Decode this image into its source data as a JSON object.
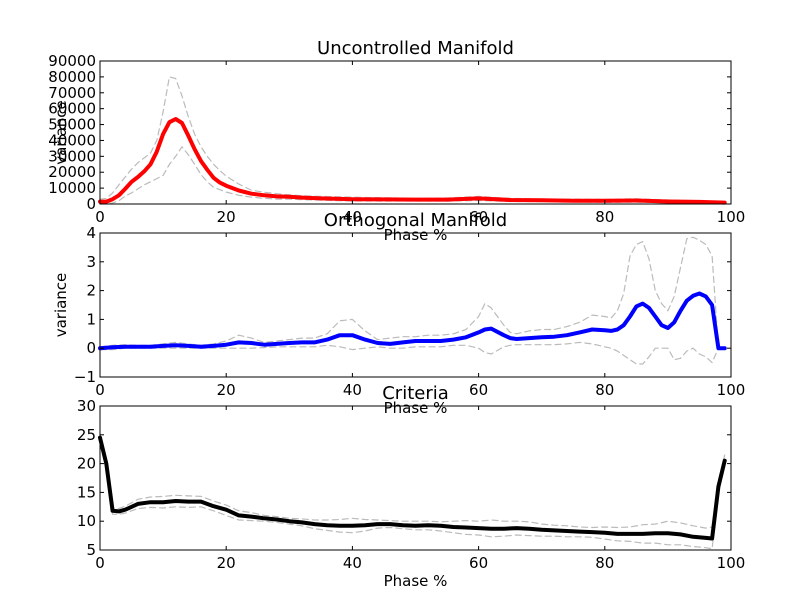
{
  "chart_data": [
    {
      "type": "line",
      "title": "Uncontrolled Manifold",
      "xlabel": "Phase %",
      "ylabel": "variance",
      "xlim": [
        0,
        100
      ],
      "ylim": [
        0,
        90000
      ],
      "xticks": [
        "0",
        "20",
        "40",
        "60",
        "80",
        "100"
      ],
      "yticks": [
        "0",
        "10000",
        "20000",
        "30000",
        "40000",
        "50000",
        "60000",
        "70000",
        "80000",
        "90000"
      ],
      "grid": false,
      "series": [
        {
          "role": "mean",
          "color": "#ff0000",
          "x": [
            0,
            1,
            2,
            3,
            4,
            5,
            6,
            7,
            8,
            9,
            10,
            11,
            12,
            13,
            14,
            15,
            16,
            17,
            18,
            19,
            20,
            22,
            24,
            26,
            28,
            30,
            32,
            35,
            38,
            40,
            45,
            50,
            55,
            60,
            65,
            70,
            75,
            80,
            85,
            90,
            95,
            99
          ],
          "y": [
            1500,
            1500,
            3000,
            5500,
            9500,
            14000,
            17000,
            20500,
            25000,
            33000,
            44000,
            51500,
            53500,
            51000,
            43000,
            34500,
            27000,
            21500,
            16500,
            13500,
            11500,
            8500,
            6500,
            5500,
            4800,
            4500,
            4000,
            3500,
            3200,
            3000,
            2900,
            2800,
            2800,
            3500,
            2500,
            2300,
            2100,
            2000,
            2200,
            1600,
            1300,
            900
          ]
        },
        {
          "role": "upper",
          "color": "#bbbbbb",
          "x": [
            0,
            1,
            2,
            3,
            4,
            5,
            6,
            7,
            8,
            9,
            10,
            11,
            12,
            13,
            14,
            15,
            16,
            17,
            18,
            19,
            20,
            22,
            24,
            26,
            28,
            30,
            32,
            35,
            38,
            40,
            45,
            50,
            55,
            60,
            65,
            70,
            75,
            80,
            85,
            90,
            95,
            99
          ],
          "y": [
            3000,
            3500,
            7000,
            12000,
            17000,
            22000,
            26000,
            29000,
            32000,
            40000,
            58000,
            80000,
            79000,
            68000,
            55000,
            44000,
            36000,
            30000,
            25000,
            21000,
            17500,
            12500,
            8700,
            7400,
            6500,
            5800,
            5200,
            4800,
            4500,
            4300,
            3900,
            3600,
            3800,
            4800,
            3500,
            3100,
            3000,
            2900,
            3300,
            2500,
            2000,
            1400
          ]
        },
        {
          "role": "lower",
          "color": "#bbbbbb",
          "x": [
            0,
            1,
            2,
            3,
            4,
            5,
            6,
            7,
            8,
            9,
            10,
            11,
            12,
            13,
            14,
            15,
            16,
            17,
            18,
            19,
            20,
            22,
            24,
            26,
            28,
            30,
            32,
            35,
            38,
            40,
            45,
            50,
            55,
            60,
            65,
            70,
            75,
            80,
            85,
            90,
            95,
            99
          ],
          "y": [
            300,
            200,
            600,
            2000,
            5000,
            7000,
            9500,
            12000,
            14000,
            16000,
            18000,
            25000,
            30000,
            36000,
            31000,
            25000,
            18500,
            14000,
            10500,
            9000,
            7500,
            5500,
            4300,
            3600,
            3100,
            3000,
            2800,
            2400,
            2100,
            1900,
            1800,
            1900,
            1800,
            2200,
            1600,
            1500,
            1300,
            1100,
            1200,
            900,
            700,
            400
          ]
        }
      ]
    },
    {
      "type": "line",
      "title": "Orthogonal Manifold",
      "xlabel": "Phase %",
      "ylabel": "variance",
      "xlim": [
        0,
        100
      ],
      "ylim": [
        -1,
        4
      ],
      "xticks": [
        "0",
        "20",
        "40",
        "60",
        "80",
        "100"
      ],
      "yticks": [
        "−1",
        "0",
        "1",
        "2",
        "3",
        "4"
      ],
      "grid": false,
      "series": [
        {
          "role": "mean",
          "color": "#0000ff",
          "x": [
            0,
            2,
            4,
            6,
            8,
            10,
            12,
            14,
            16,
            18,
            20,
            22,
            24,
            26,
            28,
            30,
            32,
            34,
            36,
            38,
            40,
            42,
            44,
            46,
            48,
            50,
            52,
            54,
            56,
            58,
            60,
            61,
            62,
            64,
            65,
            66,
            68,
            70,
            72,
            74,
            76,
            78,
            80,
            81,
            82,
            83,
            84,
            85,
            86,
            87,
            88,
            89,
            90,
            91,
            92,
            93,
            94,
            95,
            96,
            97,
            98,
            99
          ],
          "y": [
            0,
            0.03,
            0.05,
            0.05,
            0.05,
            0.08,
            0.1,
            0.08,
            0.05,
            0.08,
            0.12,
            0.2,
            0.18,
            0.12,
            0.15,
            0.18,
            0.2,
            0.2,
            0.3,
            0.45,
            0.45,
            0.3,
            0.18,
            0.15,
            0.2,
            0.25,
            0.25,
            0.25,
            0.3,
            0.38,
            0.55,
            0.65,
            0.68,
            0.45,
            0.35,
            0.32,
            0.35,
            0.38,
            0.4,
            0.45,
            0.55,
            0.65,
            0.62,
            0.6,
            0.65,
            0.8,
            1.1,
            1.45,
            1.55,
            1.4,
            1.1,
            0.8,
            0.7,
            0.9,
            1.3,
            1.65,
            1.82,
            1.9,
            1.8,
            1.5,
            0,
            0
          ]
        },
        {
          "role": "upper",
          "color": "#bbbbbb",
          "x": [
            0,
            2,
            4,
            6,
            8,
            10,
            12,
            14,
            16,
            18,
            20,
            22,
            24,
            26,
            28,
            30,
            32,
            34,
            36,
            38,
            40,
            42,
            44,
            46,
            48,
            50,
            52,
            54,
            56,
            58,
            60,
            61,
            62,
            64,
            65,
            66,
            68,
            70,
            72,
            74,
            76,
            78,
            80,
            81,
            82,
            83,
            84,
            85,
            86,
            87,
            88,
            89,
            90,
            91,
            92,
            93,
            94,
            95,
            96,
            97,
            98,
            99
          ],
          "y": [
            0.05,
            0.1,
            0.12,
            0.1,
            0.1,
            0.15,
            0.2,
            0.15,
            0.1,
            0.15,
            0.25,
            0.45,
            0.35,
            0.2,
            0.25,
            0.3,
            0.35,
            0.35,
            0.5,
            0.95,
            1.0,
            0.6,
            0.3,
            0.35,
            0.4,
            0.4,
            0.45,
            0.45,
            0.5,
            0.65,
            1.1,
            1.55,
            1.4,
            0.8,
            0.55,
            0.5,
            0.6,
            0.65,
            0.65,
            0.75,
            0.9,
            1.15,
            1.1,
            1.05,
            1.3,
            1.9,
            3.2,
            3.6,
            3.7,
            3.1,
            2.0,
            1.55,
            1.3,
            1.8,
            2.8,
            3.8,
            3.85,
            3.75,
            3.6,
            3.2,
            0,
            0
          ]
        },
        {
          "role": "lower",
          "color": "#bbbbbb",
          "x": [
            0,
            2,
            4,
            6,
            8,
            10,
            12,
            14,
            16,
            18,
            20,
            22,
            24,
            26,
            28,
            30,
            32,
            34,
            36,
            38,
            40,
            42,
            44,
            46,
            48,
            50,
            52,
            54,
            56,
            58,
            60,
            61,
            62,
            64,
            65,
            66,
            68,
            70,
            72,
            74,
            76,
            78,
            80,
            81,
            82,
            83,
            84,
            85,
            86,
            87,
            88,
            89,
            90,
            91,
            92,
            93,
            94,
            95,
            96,
            97,
            98,
            99
          ],
          "y": [
            -0.05,
            -0.05,
            0,
            0,
            0,
            0,
            0,
            0,
            0,
            0,
            0,
            0,
            0,
            0.02,
            0.05,
            0.05,
            0.05,
            0.05,
            0.1,
            0.05,
            -0.05,
            0,
            0.05,
            0,
            0,
            0.05,
            0.05,
            0.05,
            0.1,
            0.1,
            0,
            -0.15,
            -0.2,
            0.05,
            0.1,
            0.12,
            0.12,
            0.12,
            0.12,
            0.15,
            0.2,
            0.15,
            0.05,
            0,
            -0.1,
            -0.25,
            -0.4,
            -0.55,
            -0.55,
            -0.3,
            0,
            0,
            0,
            -0.4,
            -0.35,
            -0.1,
            0,
            -0.2,
            -0.3,
            -0.5,
            0,
            0
          ]
        }
      ]
    },
    {
      "type": "line",
      "title": "Criteria",
      "xlabel": "Phase %",
      "ylabel": "",
      "xlim": [
        0,
        100
      ],
      "ylim": [
        5,
        30
      ],
      "xticks": [
        "0",
        "20",
        "40",
        "60",
        "80",
        "100"
      ],
      "yticks": [
        "5",
        "10",
        "15",
        "20",
        "25",
        "30"
      ],
      "grid": false,
      "series": [
        {
          "role": "mean",
          "color": "#000000",
          "x": [
            0,
            1,
            2,
            3,
            4,
            5,
            6,
            8,
            10,
            12,
            14,
            16,
            18,
            20,
            22,
            24,
            26,
            28,
            30,
            32,
            34,
            36,
            38,
            40,
            42,
            44,
            46,
            48,
            50,
            52,
            54,
            56,
            58,
            60,
            62,
            64,
            66,
            68,
            70,
            72,
            74,
            76,
            78,
            80,
            82,
            84,
            86,
            88,
            90,
            92,
            94,
            96,
            97,
            98,
            99
          ],
          "y": [
            24.5,
            20,
            11.8,
            11.7,
            12,
            12.5,
            13,
            13.3,
            13.3,
            13.5,
            13.4,
            13.4,
            12.6,
            12,
            11,
            10.8,
            10.5,
            10.3,
            10,
            9.8,
            9.5,
            9.3,
            9.2,
            9.2,
            9.3,
            9.5,
            9.5,
            9.3,
            9.2,
            9.3,
            9.2,
            9,
            8.9,
            8.8,
            8.7,
            8.7,
            8.8,
            8.7,
            8.5,
            8.4,
            8.3,
            8.2,
            8.1,
            8,
            7.8,
            7.8,
            7.8,
            7.9,
            7.9,
            7.7,
            7.3,
            7.1,
            7,
            16,
            20.5
          ]
        },
        {
          "role": "upper",
          "color": "#bbbbbb",
          "x": [
            0,
            1,
            2,
            3,
            4,
            5,
            6,
            8,
            10,
            12,
            14,
            16,
            18,
            20,
            22,
            24,
            26,
            28,
            30,
            32,
            34,
            36,
            38,
            40,
            42,
            44,
            46,
            48,
            50,
            52,
            54,
            56,
            58,
            60,
            62,
            64,
            66,
            68,
            70,
            72,
            74,
            76,
            78,
            80,
            82,
            84,
            86,
            88,
            90,
            92,
            94,
            96,
            97,
            98,
            99
          ],
          "y": [
            25,
            21,
            12.3,
            12.2,
            12.6,
            13.2,
            13.8,
            14.2,
            14.3,
            14.5,
            14.4,
            14.3,
            13.5,
            12.8,
            11.8,
            11.5,
            11,
            10.8,
            10.5,
            10.4,
            10.2,
            10.2,
            10.3,
            10.5,
            10.3,
            10.2,
            10.1,
            10,
            10,
            10,
            9.9,
            10,
            10.1,
            10,
            10.2,
            10,
            10,
            9.9,
            9.5,
            9.3,
            9.2,
            9,
            8.9,
            9,
            8.9,
            9,
            9.4,
            9.5,
            10,
            9.7,
            9.2,
            8.8,
            9,
            17,
            21.5
          ]
        },
        {
          "role": "lower",
          "color": "#bbbbbb",
          "x": [
            0,
            1,
            2,
            3,
            4,
            5,
            6,
            8,
            10,
            12,
            14,
            16,
            18,
            20,
            22,
            24,
            26,
            28,
            30,
            32,
            34,
            36,
            38,
            40,
            42,
            44,
            46,
            48,
            50,
            52,
            54,
            56,
            58,
            60,
            62,
            64,
            66,
            68,
            70,
            72,
            74,
            76,
            78,
            80,
            82,
            84,
            86,
            88,
            90,
            92,
            94,
            96,
            97,
            98,
            99
          ],
          "y": [
            23.5,
            19,
            11.2,
            11.2,
            11.4,
            11.8,
            12.2,
            12.4,
            12.3,
            12.5,
            12.4,
            12.5,
            11.8,
            11,
            10.2,
            10.1,
            10,
            9.8,
            9.5,
            9.2,
            8.7,
            8.4,
            8.1,
            8,
            8.3,
            8.8,
            8.9,
            8.7,
            8.5,
            8.5,
            8.3,
            8,
            7.7,
            7.6,
            7.3,
            7.4,
            7.6,
            7.5,
            7.4,
            7.4,
            7.3,
            7.3,
            7.2,
            6.9,
            6.6,
            6.5,
            6.2,
            6.2,
            5.9,
            5.9,
            5.6,
            5.4,
            5.2,
            15,
            19.5
          ]
        }
      ]
    }
  ]
}
